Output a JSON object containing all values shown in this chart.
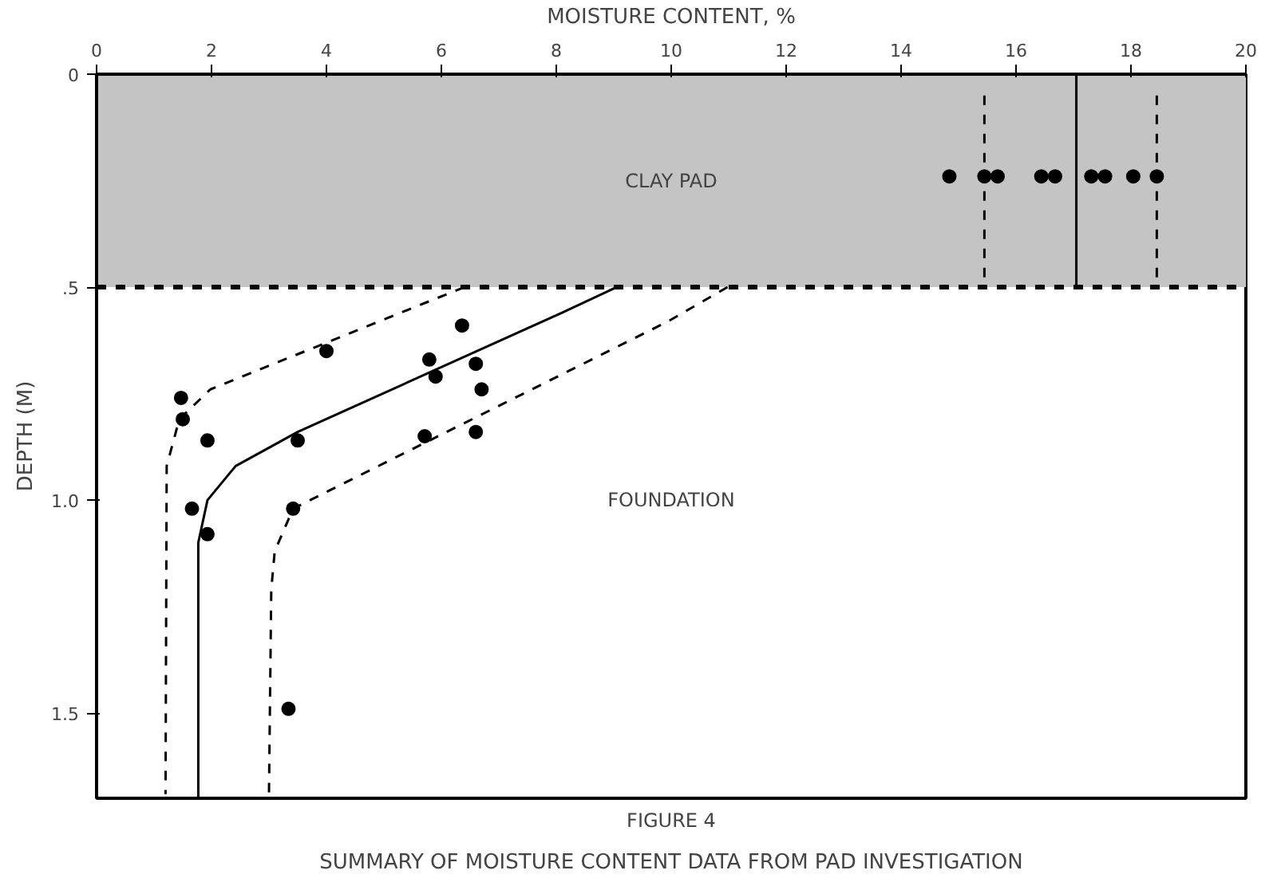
{
  "chart_data": {
    "type": "scatter",
    "title": "FIGURE 4",
    "subtitle": "SUMMARY OF MOISTURE CONTENT DATA FROM PAD INVESTIGATION",
    "xlabel": "MOISTURE CONTENT, %",
    "ylabel": "DEPTH (M)",
    "xlim": [
      0,
      20
    ],
    "xticks": [
      0,
      2,
      4,
      6,
      8,
      10,
      12,
      14,
      16,
      18,
      20
    ],
    "ylim": [
      1.7,
      0
    ],
    "yticks": [
      {
        "value": 0,
        "label": "0"
      },
      {
        "value": 0.5,
        "label": ".5"
      },
      {
        "value": 1.0,
        "label": "1.0"
      },
      {
        "value": 1.5,
        "label": "1.5"
      }
    ],
    "grid": false,
    "series": [
      {
        "marker": "circle",
        "color": "#000000",
        "x": [
          1.47,
          1.5,
          1.93,
          1.66,
          1.93,
          4.0,
          3.5,
          3.42,
          3.34,
          5.79,
          5.9,
          5.71,
          6.36,
          6.6,
          6.7,
          6.6,
          14.84,
          15.45,
          15.68,
          16.44,
          16.68,
          17.31,
          17.55,
          18.04,
          18.45
        ],
        "values": [
          0.76,
          0.81,
          0.86,
          1.02,
          1.08,
          0.65,
          0.86,
          1.02,
          1.49,
          0.67,
          0.71,
          0.85,
          0.59,
          0.68,
          0.74,
          0.84,
          0.24,
          0.24,
          0.24,
          0.24,
          0.24,
          0.24,
          0.24,
          0.24,
          0.24
        ]
      },
      {
        "type": "line",
        "line_style": "solid",
        "color": "#000000",
        "x": [
          9.05,
          8.1,
          3.5,
          2.42,
          1.93,
          1.77,
          1.77
        ],
        "values": [
          0.5,
          0.56,
          0.84,
          0.92,
          1.0,
          1.1,
          1.7
        ]
      },
      {
        "type": "line",
        "line_style": "dashed",
        "color": "#000000",
        "x": [
          6.4,
          1.98,
          1.44,
          1.22,
          1.2
        ],
        "values": [
          0.5,
          0.74,
          0.81,
          0.92,
          1.69
        ]
      },
      {
        "type": "line",
        "line_style": "dashed",
        "color": "#000000",
        "x": [
          10.98,
          9.95,
          3.42,
          3.1,
          3.04,
          3.0
        ],
        "values": [
          0.5,
          0.58,
          1.02,
          1.12,
          1.21,
          1.69
        ]
      },
      {
        "type": "line",
        "line_style": "dashed",
        "color": "#000000",
        "x": [
          15.45,
          15.45
        ],
        "values": [
          0.05,
          0.5
        ]
      },
      {
        "type": "line",
        "line_style": "solid",
        "color": "#000000",
        "x": [
          17.05,
          17.05
        ],
        "values": [
          0.0,
          0.5
        ]
      },
      {
        "type": "line",
        "line_style": "dashed",
        "color": "#000000",
        "x": [
          18.45,
          18.45
        ],
        "values": [
          0.05,
          0.5
        ]
      }
    ],
    "bands": [
      {
        "axis": "y",
        "from": 0,
        "to": 0.5,
        "label": "CLAY PAD",
        "color": "#c4c4c4"
      }
    ],
    "ref_lines": [
      {
        "axis": "y",
        "value": 0.5,
        "line_style": "dashed",
        "color": "#000000"
      }
    ],
    "annotations": [
      "FOUNDATION"
    ]
  }
}
